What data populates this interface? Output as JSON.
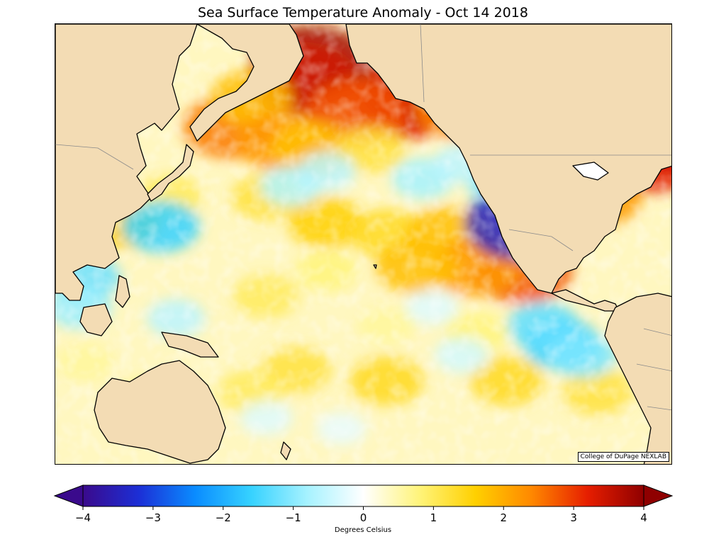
{
  "title": "Sea Surface Temperature Anomaly - Oct 14 2018",
  "credit": "College of DuPage NEXLAB",
  "colorbar": {
    "min": -4,
    "max": 4,
    "ticks": [
      "−4",
      "−3",
      "−2",
      "−1",
      "0",
      "1",
      "2",
      "3",
      "4"
    ],
    "label": "Degrees Celsius",
    "extend": "both",
    "colors": [
      "#3a0a8c",
      "#1c2fd6",
      "#0a8cff",
      "#36d2ff",
      "#a6f2ff",
      "#ffffff",
      "#fff47a",
      "#ffd000",
      "#ff8800",
      "#e61e00",
      "#8f0000"
    ]
  },
  "map": {
    "region": "Pacific Ocean",
    "land_color": "#f3dcb4",
    "ocean_base_color": "#fff7c0",
    "anomaly_patches": [
      {
        "lon": 175,
        "lat": 61,
        "value": 3.8
      },
      {
        "lon": 172,
        "lat": 57,
        "value": 3.4
      },
      {
        "lon": 205,
        "lat": 50,
        "value": 3.2
      },
      {
        "lon": 210,
        "lat": 54,
        "value": 3.4
      },
      {
        "lon": 190,
        "lat": 48,
        "value": 2.8
      },
      {
        "lon": 225,
        "lat": 49,
        "value": 2.4
      },
      {
        "lon": 148,
        "lat": 44,
        "value": 2.5
      },
      {
        "lon": 155,
        "lat": 52,
        "value": 1.8
      },
      {
        "lon": 165,
        "lat": 40,
        "value": 2.2
      },
      {
        "lon": 175,
        "lat": 38,
        "value": 1.8
      },
      {
        "lon": 195,
        "lat": 38,
        "value": 1.2
      },
      {
        "lon": 160,
        "lat": 25,
        "value": 1.2
      },
      {
        "lon": 180,
        "lat": 18,
        "value": 1.6
      },
      {
        "lon": 200,
        "lat": 15,
        "value": 1.4
      },
      {
        "lon": 220,
        "lat": 15,
        "value": 1.8
      },
      {
        "lon": 245,
        "lat": 5,
        "value": 2.8
      },
      {
        "lon": 230,
        "lat": 6,
        "value": 2.2
      },
      {
        "lon": 210,
        "lat": 6,
        "value": 1.8
      },
      {
        "lon": 255,
        "lat": 22,
        "value": 2.2
      },
      {
        "lon": 270,
        "lat": 25,
        "value": 2.2
      },
      {
        "lon": 288,
        "lat": 36,
        "value": 3.2
      },
      {
        "lon": 292,
        "lat": 42,
        "value": 3.4
      },
      {
        "lon": 255,
        "lat": 30,
        "value": 1.6
      },
      {
        "lon": 180,
        "lat": 5,
        "value": 0.8
      },
      {
        "lon": 160,
        "lat": -2,
        "value": 1.0
      },
      {
        "lon": 200,
        "lat": -10,
        "value": 0.6
      },
      {
        "lon": 230,
        "lat": -12,
        "value": 0.8
      },
      {
        "lon": 170,
        "lat": -22,
        "value": 1.2
      },
      {
        "lon": 200,
        "lat": -25,
        "value": 1.4
      },
      {
        "lon": 240,
        "lat": -25,
        "value": 1.4
      },
      {
        "lon": 270,
        "lat": -28,
        "value": 1.2
      },
      {
        "lon": 155,
        "lat": -28,
        "value": 1.0
      },
      {
        "lon": 120,
        "lat": -30,
        "value": 0.8
      },
      {
        "lon": 100,
        "lat": -20,
        "value": 0.6
      },
      {
        "lon": 112,
        "lat": 18,
        "value": 1.6
      },
      {
        "lon": 128,
        "lat": 25,
        "value": 1.0
      },
      {
        "lon": 276,
        "lat": 46,
        "value": -1.8
      },
      {
        "lon": 275,
        "lat": 45,
        "value": -2.0
      },
      {
        "lon": 212,
        "lat": 30,
        "value": -0.8
      },
      {
        "lon": 225,
        "lat": 34,
        "value": -0.6
      },
      {
        "lon": 238,
        "lat": 28,
        "value": -1.0
      },
      {
        "lon": 245,
        "lat": 18,
        "value": -3.5
      },
      {
        "lon": 258,
        "lat": -15,
        "value": -1.6
      },
      {
        "lon": 252,
        "lat": -10,
        "value": -1.3
      },
      {
        "lon": 265,
        "lat": -18,
        "value": -1.1
      },
      {
        "lon": 180,
        "lat": 32,
        "value": -0.6
      },
      {
        "lon": 168,
        "lat": 28,
        "value": -0.7
      },
      {
        "lon": 125,
        "lat": 17,
        "value": -1.6
      },
      {
        "lon": 100,
        "lat": 3,
        "value": -1.2
      },
      {
        "lon": 98,
        "lat": -5,
        "value": -0.9
      },
      {
        "lon": 130,
        "lat": -8,
        "value": -0.6
      },
      {
        "lon": 215,
        "lat": -5,
        "value": -0.3
      },
      {
        "lon": 225,
        "lat": -18,
        "value": -0.4
      },
      {
        "lon": 160,
        "lat": -35,
        "value": -0.3
      },
      {
        "lon": 185,
        "lat": -38,
        "value": -0.2
      }
    ]
  }
}
